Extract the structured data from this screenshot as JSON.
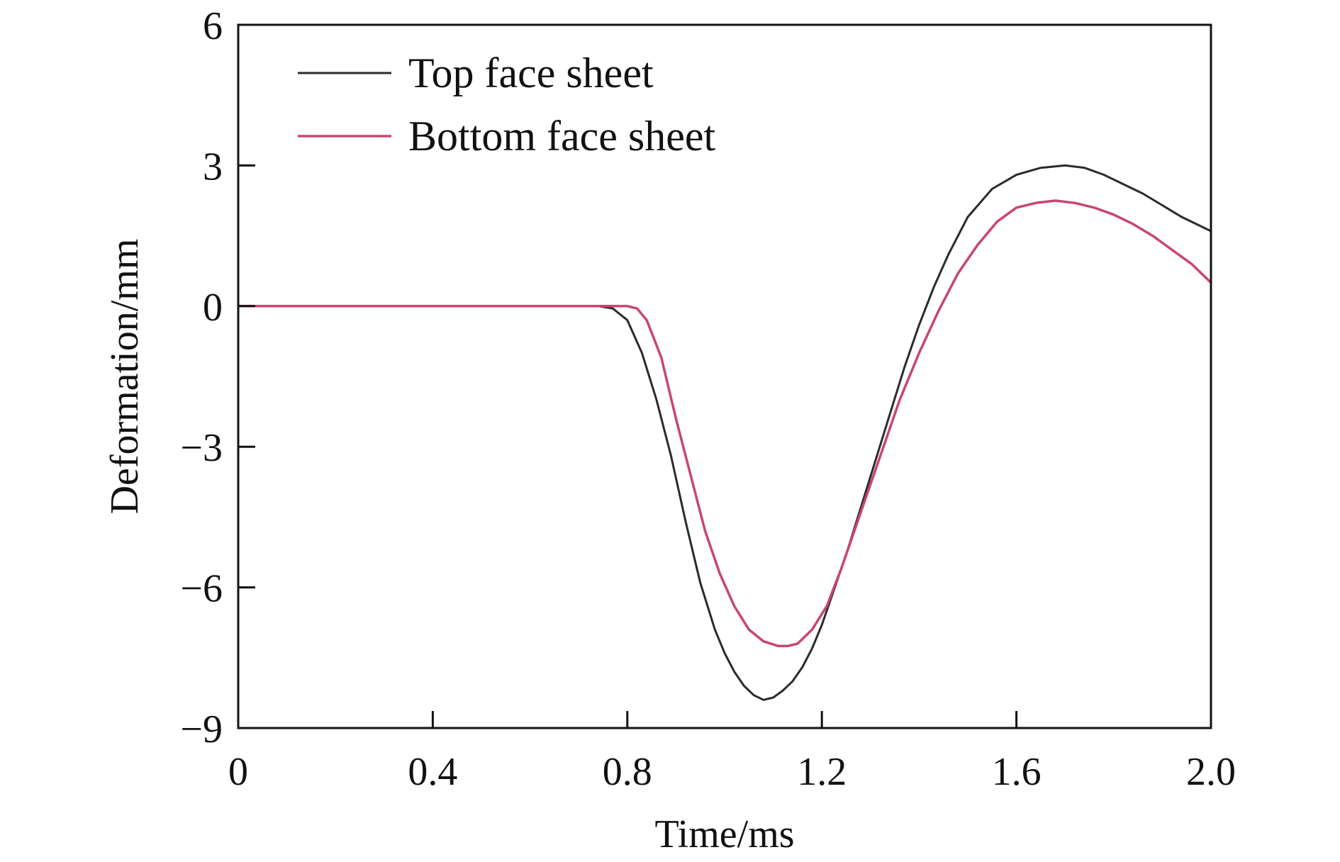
{
  "chart_data": {
    "type": "line",
    "title": "",
    "xlabel": "Time/ms",
    "ylabel": "Deformation/mm",
    "xlim": [
      0,
      2.0
    ],
    "ylim": [
      -9,
      6
    ],
    "xticks": [
      0,
      0.4,
      0.8,
      1.2,
      1.6,
      2.0
    ],
    "xtick_labels": [
      "0",
      "0.4",
      "0.8",
      "1.2",
      "1.6",
      "2.0"
    ],
    "yticks": [
      6,
      3,
      0,
      -3,
      -6,
      -9
    ],
    "ytick_labels": [
      "6",
      "3",
      "0",
      "−3",
      "−6",
      "−9"
    ],
    "grid": false,
    "legend_position": "top-left",
    "series": [
      {
        "name": "Top face sheet",
        "color": "#2b2b2b",
        "x": [
          0,
          0.74,
          0.77,
          0.8,
          0.83,
          0.86,
          0.89,
          0.92,
          0.95,
          0.98,
          1.0,
          1.02,
          1.04,
          1.06,
          1.08,
          1.1,
          1.12,
          1.14,
          1.16,
          1.18,
          1.2,
          1.22,
          1.25,
          1.28,
          1.31,
          1.34,
          1.37,
          1.4,
          1.43,
          1.46,
          1.5,
          1.55,
          1.6,
          1.65,
          1.7,
          1.74,
          1.78,
          1.82,
          1.86,
          1.9,
          1.94,
          1.98,
          2.0
        ],
        "y": [
          0,
          0,
          -0.05,
          -0.3,
          -1.0,
          -2.0,
          -3.2,
          -4.6,
          -5.9,
          -6.9,
          -7.4,
          -7.8,
          -8.1,
          -8.3,
          -8.4,
          -8.35,
          -8.2,
          -8.0,
          -7.7,
          -7.3,
          -6.8,
          -6.2,
          -5.3,
          -4.3,
          -3.3,
          -2.3,
          -1.3,
          -0.4,
          0.4,
          1.1,
          1.9,
          2.5,
          2.8,
          2.95,
          3.0,
          2.95,
          2.8,
          2.6,
          2.4,
          2.15,
          1.9,
          1.7,
          1.6
        ]
      },
      {
        "name": "Bottom face sheet",
        "color": "#c8466e",
        "x": [
          0,
          0.8,
          0.82,
          0.84,
          0.87,
          0.9,
          0.93,
          0.96,
          0.99,
          1.02,
          1.05,
          1.08,
          1.11,
          1.13,
          1.15,
          1.18,
          1.21,
          1.24,
          1.27,
          1.3,
          1.33,
          1.36,
          1.4,
          1.44,
          1.48,
          1.52,
          1.56,
          1.6,
          1.64,
          1.68,
          1.72,
          1.76,
          1.8,
          1.84,
          1.88,
          1.92,
          1.96,
          2.0
        ],
        "y": [
          0,
          0,
          -0.05,
          -0.3,
          -1.1,
          -2.4,
          -3.6,
          -4.8,
          -5.7,
          -6.4,
          -6.9,
          -7.15,
          -7.25,
          -7.25,
          -7.2,
          -6.9,
          -6.4,
          -5.6,
          -4.7,
          -3.8,
          -2.9,
          -2.0,
          -1.0,
          -0.1,
          0.7,
          1.3,
          1.8,
          2.1,
          2.2,
          2.25,
          2.2,
          2.1,
          1.95,
          1.75,
          1.5,
          1.2,
          0.9,
          0.5
        ]
      }
    ]
  }
}
